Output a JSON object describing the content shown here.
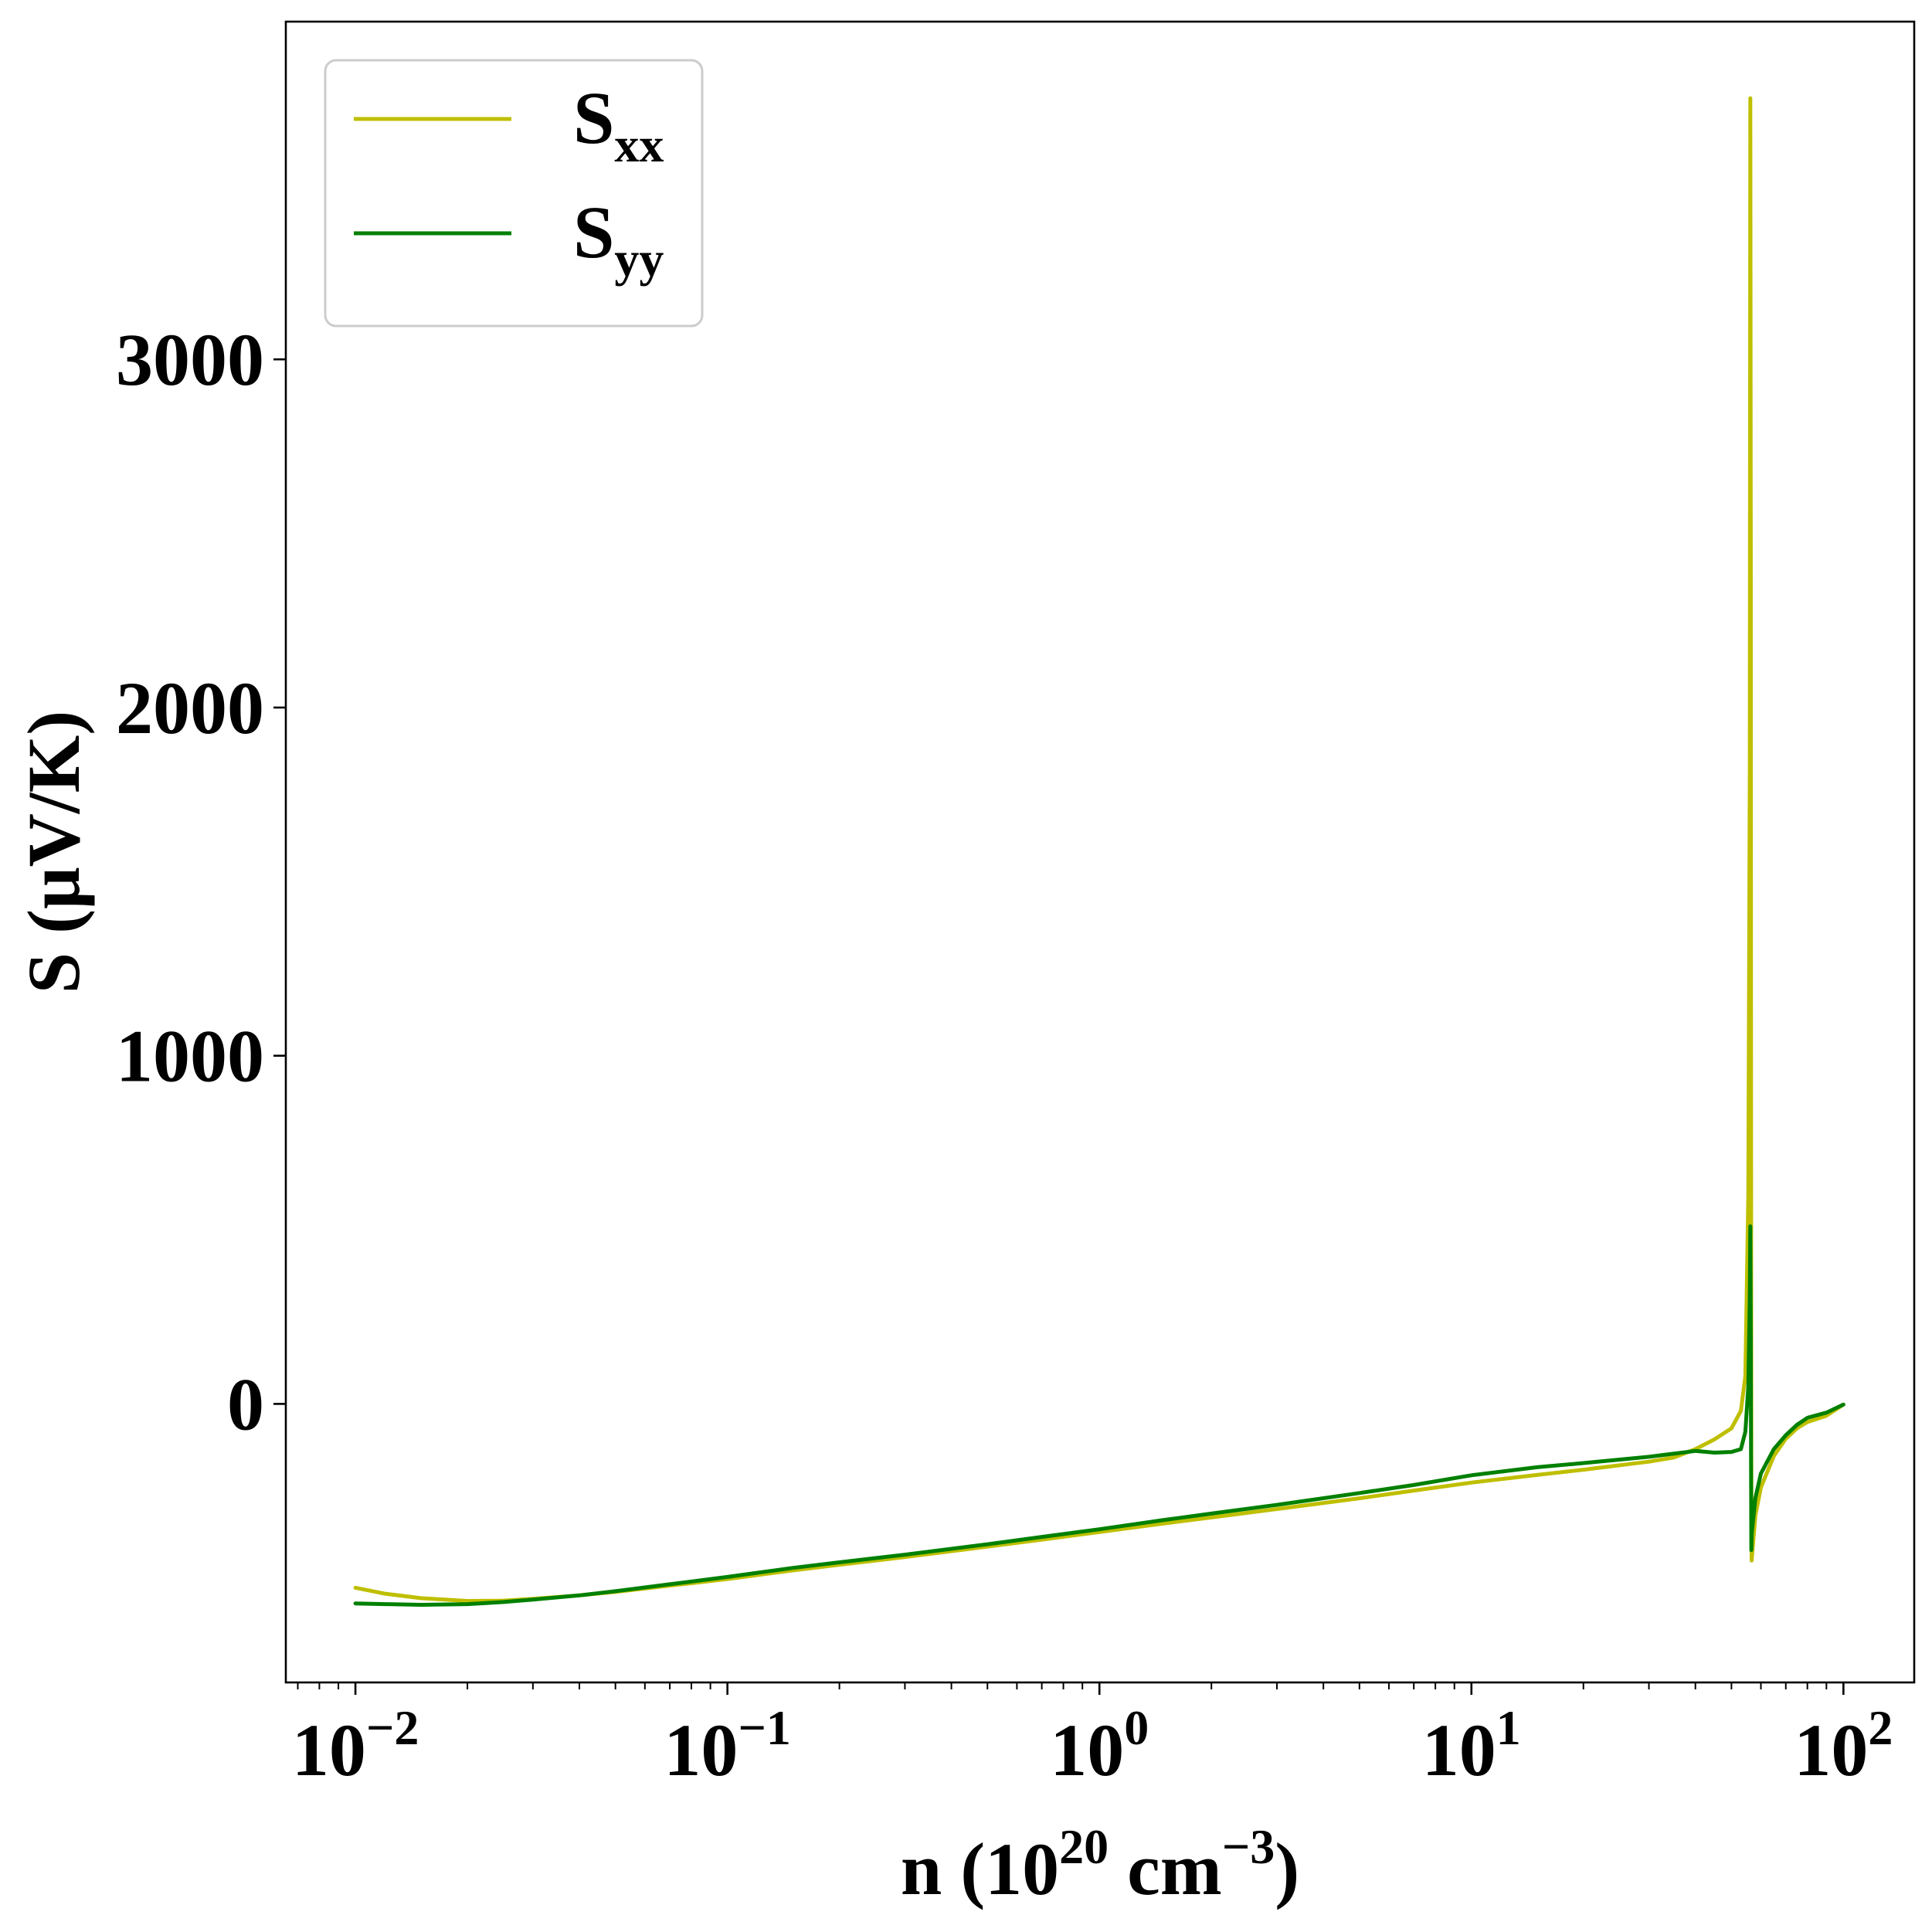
{
  "chart_data": {
    "type": "line",
    "xlabel": {
      "base": "n (10",
      "exp1": "20",
      "mid": " cm",
      "exp2": "−3",
      "end": ")"
    },
    "ylabel": "S (μV/K)",
    "xscale": "log",
    "xlim": [
      0.0065,
      155
    ],
    "ylim": [
      -800,
      3970
    ],
    "grid": false,
    "legend_position": "top-left",
    "x_ticks": [
      {
        "value": 0.01,
        "base": "10",
        "exp": "−2"
      },
      {
        "value": 0.1,
        "base": "10",
        "exp": "−1"
      },
      {
        "value": 1,
        "base": "10",
        "exp": "0"
      },
      {
        "value": 10,
        "base": "10",
        "exp": "1"
      },
      {
        "value": 100,
        "base": "10",
        "exp": "2"
      }
    ],
    "y_ticks": [
      {
        "value": 0,
        "label": "0"
      },
      {
        "value": 1000,
        "label": "1000"
      },
      {
        "value": 2000,
        "label": "2000"
      },
      {
        "value": 3000,
        "label": "3000"
      }
    ],
    "series": [
      {
        "name": "xx",
        "label_base": "S",
        "label_sub": "xx",
        "color": "#bfbf00",
        "points": [
          [
            0.01,
            -528
          ],
          [
            0.012,
            -545
          ],
          [
            0.015,
            -558
          ],
          [
            0.02,
            -566
          ],
          [
            0.025,
            -565
          ],
          [
            0.03,
            -560
          ],
          [
            0.04,
            -550
          ],
          [
            0.05,
            -540
          ],
          [
            0.07,
            -522
          ],
          [
            0.1,
            -503
          ],
          [
            0.15,
            -478
          ],
          [
            0.2,
            -462
          ],
          [
            0.3,
            -440
          ],
          [
            0.5,
            -410
          ],
          [
            0.7,
            -390
          ],
          [
            1,
            -368
          ],
          [
            1.5,
            -343
          ],
          [
            2,
            -326
          ],
          [
            3,
            -302
          ],
          [
            5,
            -271
          ],
          [
            7,
            -249
          ],
          [
            10,
            -226
          ],
          [
            15,
            -204
          ],
          [
            20,
            -189
          ],
          [
            30,
            -166
          ],
          [
            35,
            -154
          ],
          [
            40,
            -130
          ],
          [
            45,
            -102
          ],
          [
            50,
            -70
          ],
          [
            53,
            -20
          ],
          [
            54.5,
            80
          ],
          [
            55.5,
            600
          ],
          [
            56,
            1800
          ],
          [
            56.2,
            3750
          ],
          [
            56.35,
            2500
          ],
          [
            56.45,
            800
          ],
          [
            56.55,
            -150
          ],
          [
            56.65,
            -450
          ],
          [
            56.75,
            -440
          ],
          [
            58,
            -320
          ],
          [
            60,
            -240
          ],
          [
            65,
            -150
          ],
          [
            70,
            -100
          ],
          [
            75,
            -70
          ],
          [
            80,
            -52
          ],
          [
            90,
            -34
          ],
          [
            100,
            -2
          ]
        ]
      },
      {
        "name": "yy",
        "label_base": "S",
        "label_sub": "yy",
        "color": "#008000",
        "points": [
          [
            0.01,
            -573
          ],
          [
            0.012,
            -575
          ],
          [
            0.015,
            -577
          ],
          [
            0.02,
            -575
          ],
          [
            0.025,
            -569
          ],
          [
            0.03,
            -562
          ],
          [
            0.04,
            -550
          ],
          [
            0.05,
            -538
          ],
          [
            0.07,
            -518
          ],
          [
            0.1,
            -497
          ],
          [
            0.15,
            -471
          ],
          [
            0.2,
            -455
          ],
          [
            0.3,
            -433
          ],
          [
            0.5,
            -403
          ],
          [
            0.7,
            -382
          ],
          [
            1,
            -360
          ],
          [
            1.5,
            -333
          ],
          [
            2,
            -315
          ],
          [
            3,
            -290
          ],
          [
            5,
            -256
          ],
          [
            7,
            -233
          ],
          [
            10,
            -205
          ],
          [
            15,
            -182
          ],
          [
            20,
            -170
          ],
          [
            30,
            -152
          ],
          [
            40,
            -135
          ],
          [
            45,
            -140
          ],
          [
            50,
            -138
          ],
          [
            53,
            -130
          ],
          [
            54.5,
            -80
          ],
          [
            55.5,
            50
          ],
          [
            56,
            300
          ],
          [
            56.2,
            510
          ],
          [
            56.35,
            200
          ],
          [
            56.45,
            -200
          ],
          [
            56.55,
            -420
          ],
          [
            56.7,
            -370
          ],
          [
            58,
            -270
          ],
          [
            60,
            -200
          ],
          [
            65,
            -130
          ],
          [
            70,
            -90
          ],
          [
            75,
            -60
          ],
          [
            80,
            -40
          ],
          [
            90,
            -25
          ],
          [
            100,
            -2
          ]
        ]
      }
    ]
  }
}
